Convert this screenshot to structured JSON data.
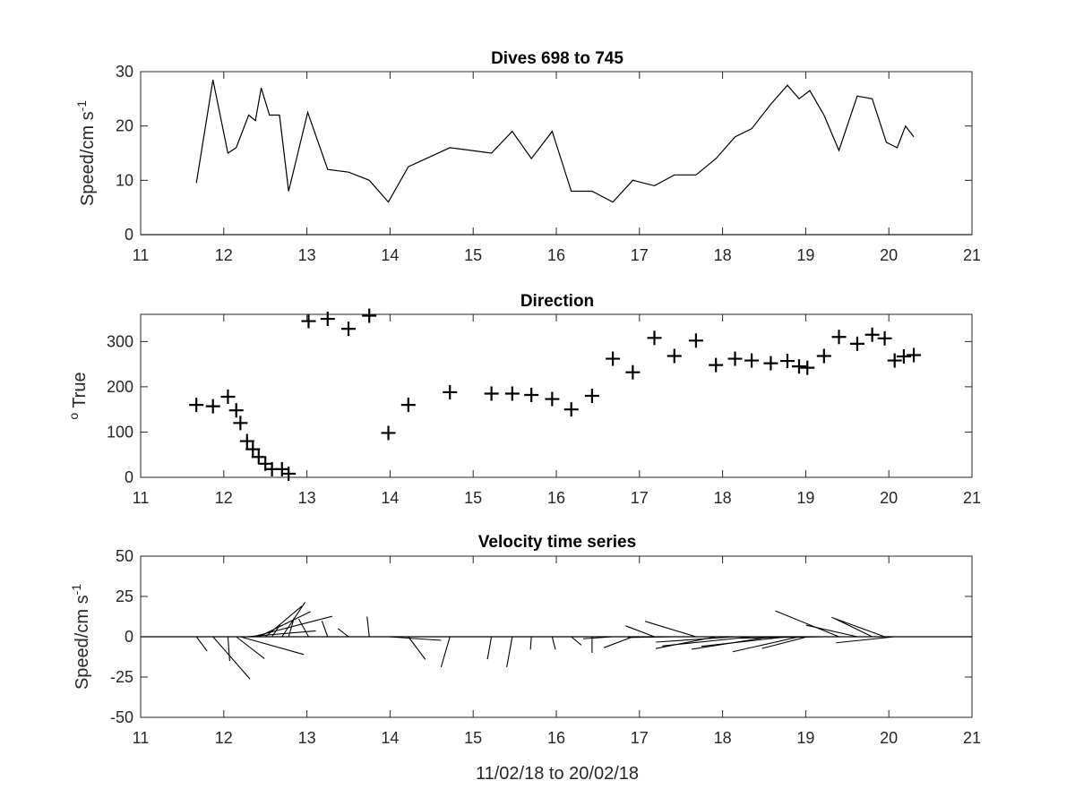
{
  "chart_data": [
    {
      "type": "line",
      "title": "Dives 698 to 745",
      "xlabel": "",
      "ylabel": "Speed/cm s",
      "ylabel_superscript": "-1",
      "xlim": [
        11,
        21
      ],
      "ylim": [
        0,
        30
      ],
      "xticks": [
        11,
        12,
        13,
        14,
        15,
        16,
        17,
        18,
        19,
        20,
        21
      ],
      "yticks": [
        0,
        10,
        20,
        30
      ],
      "baseline_y": 0,
      "series": [
        {
          "x": [
            11.67,
            11.87,
            12.05,
            12.15,
            12.3,
            12.38,
            12.45,
            12.55,
            12.67,
            12.78,
            13.01,
            13.25,
            13.5,
            13.75,
            13.98,
            14.22,
            14.72,
            15.22,
            15.47,
            15.7,
            15.95,
            16.18,
            16.43,
            16.68,
            16.92,
            17.18,
            17.42,
            17.68,
            17.92,
            18.15,
            18.35,
            18.58,
            18.78,
            18.92,
            19.05,
            19.22,
            19.4,
            19.62,
            19.8,
            19.97,
            20.1,
            20.2,
            20.3
          ],
          "y": [
            9.5,
            28.5,
            15,
            16,
            22,
            21,
            27,
            22,
            22,
            8,
            22.5,
            12,
            11.5,
            10,
            6,
            12.5,
            16,
            15,
            19,
            14,
            19,
            8,
            8,
            6,
            10,
            9,
            11,
            11,
            14,
            18,
            19.5,
            24,
            27.5,
            25,
            26.5,
            22,
            15.5,
            25.5,
            25,
            17,
            16,
            20,
            18
          ]
        }
      ]
    },
    {
      "type": "scatter",
      "title": "Direction",
      "xlabel": "",
      "ylabel": "True",
      "ylabel_superscript": "o",
      "xlim": [
        11,
        21
      ],
      "ylim": [
        0,
        360
      ],
      "xticks": [
        11,
        12,
        13,
        14,
        15,
        16,
        17,
        18,
        19,
        20,
        21
      ],
      "yticks": [
        0,
        100,
        200,
        300
      ],
      "series": [
        {
          "x": [
            11.67,
            11.87,
            12.05,
            12.15,
            12.2,
            12.28,
            12.35,
            12.42,
            12.5,
            12.58,
            12.7,
            12.78,
            13.02,
            13.25,
            13.5,
            13.75,
            13.98,
            14.22,
            14.72,
            15.22,
            15.47,
            15.7,
            15.95,
            16.18,
            16.43,
            16.68,
            16.92,
            17.18,
            17.42,
            17.68,
            17.92,
            18.15,
            18.35,
            18.58,
            18.78,
            18.92,
            19.02,
            19.22,
            19.4,
            19.62,
            19.8,
            19.95,
            20.07,
            20.18,
            20.3
          ],
          "y": [
            160,
            157,
            178,
            148,
            120,
            80,
            62,
            45,
            30,
            18,
            18,
            8,
            345,
            350,
            328,
            357,
            98,
            160,
            188,
            185,
            185,
            182,
            173,
            150,
            180,
            262,
            232,
            308,
            268,
            302,
            248,
            262,
            258,
            252,
            257,
            245,
            242,
            268,
            310,
            295,
            315,
            307,
            258,
            267,
            270
          ]
        }
      ]
    },
    {
      "type": "quiver",
      "title": "Velocity time series",
      "xlabel": "11/02/18 to 20/02/18",
      "ylabel": "Speed/cm s",
      "ylabel_superscript": "-1",
      "xlim": [
        11,
        21
      ],
      "ylim": [
        -50,
        50
      ],
      "xticks": [
        11,
        12,
        13,
        14,
        15,
        16,
        17,
        18,
        19,
        20,
        21
      ],
      "yticks": [
        -50,
        -25,
        0,
        25,
        50
      ],
      "baseline_y": 0,
      "speed_units_per_day": 25,
      "speed_source": "panel 1 series",
      "direction_source": "panel 2 series"
    }
  ]
}
